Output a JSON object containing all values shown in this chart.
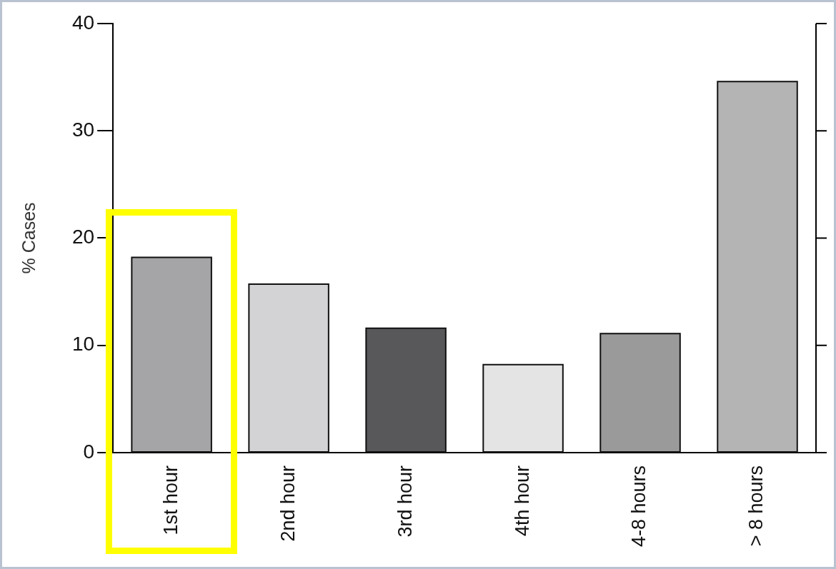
{
  "chart_data": {
    "type": "bar",
    "ylabel": "% Cases",
    "categories": [
      "1st hour",
      "2nd hour",
      "3rd hour",
      "4th hour",
      "4-8 hours",
      "> 8 hours"
    ],
    "values": [
      18.2,
      15.7,
      11.6,
      8.2,
      11.1,
      34.6
    ],
    "colors": [
      "#a5a5a7",
      "#d3d3d5",
      "#58585a",
      "#e4e4e4",
      "#9a9a9a",
      "#b4b4b4"
    ],
    "ylim": [
      0,
      40
    ],
    "yticks": [
      0,
      10,
      20,
      30,
      40
    ],
    "grid": false,
    "legend": false
  }
}
